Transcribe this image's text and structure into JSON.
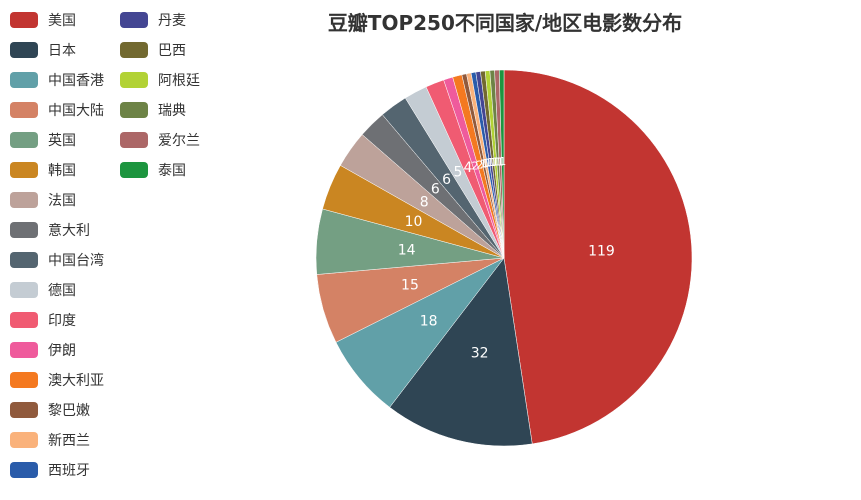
{
  "chart_data": {
    "type": "pie",
    "title": "豆瓣TOP250不同国家/地区电影数分布",
    "categories": [
      "美国",
      "日本",
      "中国香港",
      "中国大陆",
      "英国",
      "韩国",
      "法国",
      "意大利",
      "中国台湾",
      "德国",
      "印度",
      "伊朗",
      "澳大利亚",
      "黎巴嫩",
      "新西兰",
      "西班牙",
      "丹麦",
      "巴西",
      "阿根廷",
      "瑞典",
      "爱尔兰",
      "泰国"
    ],
    "values": [
      119,
      32,
      18,
      15,
      14,
      10,
      8,
      6,
      6,
      5,
      4,
      2,
      2,
      1,
      1,
      1,
      1,
      1,
      1,
      1,
      1,
      1
    ],
    "colors": [
      "#c23531",
      "#2f4554",
      "#61a0a8",
      "#d48265",
      "#749f83",
      "#ca8622",
      "#bda29a",
      "#6e7074",
      "#546570",
      "#c4ccd3",
      "#f05b72",
      "#ef5b9c",
      "#f47920",
      "#905a3d",
      "#fab27b",
      "#2a5caa",
      "#444693",
      "#726930",
      "#b2d235",
      "#6d8346",
      "#ac6767",
      "#1d953f"
    ],
    "legend_position": "left"
  }
}
